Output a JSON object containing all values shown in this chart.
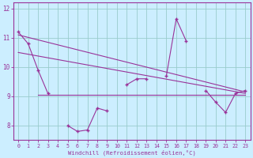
{
  "xlabel": "Windchill (Refroidissement éolien,°C)",
  "bg_color": "#cceeff",
  "plot_bg_color": "#cceeff",
  "line_color": "#993399",
  "grid_color": "#99cccc",
  "x_values": [
    0,
    1,
    2,
    3,
    4,
    5,
    6,
    7,
    8,
    9,
    10,
    11,
    12,
    13,
    14,
    15,
    16,
    17,
    18,
    19,
    20,
    21,
    22,
    23
  ],
  "line1": [
    11.2,
    10.8,
    9.9,
    9.1,
    null,
    8.0,
    7.8,
    7.85,
    8.6,
    8.5,
    null,
    9.4,
    9.6,
    9.6,
    null,
    9.7,
    11.65,
    10.9,
    null,
    9.2,
    8.8,
    8.45,
    9.1,
    9.2
  ],
  "trend1_x": [
    0,
    23
  ],
  "trend1_y": [
    11.1,
    9.15
  ],
  "trend2_x": [
    0,
    23
  ],
  "trend2_y": [
    10.5,
    9.1
  ],
  "trend3_x": [
    2,
    23
  ],
  "trend3_y": [
    9.05,
    9.05
  ],
  "ylim": [
    7.5,
    12.2
  ],
  "yticks": [
    8,
    9,
    10,
    11,
    12
  ],
  "xticks": [
    0,
    1,
    2,
    3,
    4,
    5,
    6,
    7,
    8,
    9,
    10,
    11,
    12,
    13,
    14,
    15,
    16,
    17,
    18,
    19,
    20,
    21,
    22,
    23
  ],
  "figwidth": 3.2,
  "figheight": 2.0,
  "dpi": 100
}
